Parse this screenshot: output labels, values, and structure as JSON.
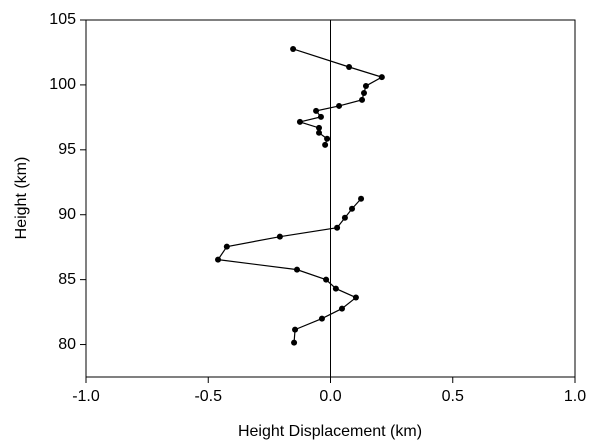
{
  "chart_data": {
    "type": "line",
    "x_label": "Height Displacement (km)",
    "y_label": "Height (km)",
    "x": [
      -0.153,
      0.076,
      0.21,
      0.145,
      0.137,
      0.129,
      0.035,
      -0.059,
      -0.039,
      -0.125,
      -0.047,
      -0.047,
      -0.014,
      -0.022,
      null,
      0.125,
      0.088,
      0.059,
      0.027,
      -0.207,
      -0.424,
      -0.46,
      -0.137,
      -0.018,
      0.022,
      0.104,
      0.047,
      -0.035,
      -0.145,
      -0.149
    ],
    "values": [
      102.77,
      101.38,
      100.6,
      99.92,
      99.38,
      98.85,
      98.38,
      98.0,
      97.54,
      97.15,
      96.69,
      96.31,
      95.85,
      95.38,
      null,
      91.23,
      90.46,
      89.77,
      89.0,
      88.31,
      87.54,
      86.54,
      85.77,
      85.0,
      84.31,
      83.62,
      82.77,
      82.0,
      81.15,
      80.15
    ],
    "color": "#000000",
    "xlim": [
      -1,
      1
    ],
    "xticks": [
      {
        "value": -1,
        "label": "-1.0"
      },
      -0.5,
      {
        "value": 0,
        "label": "0.0"
      },
      0.5,
      {
        "value": 1,
        "label": "1.0"
      }
    ],
    "ylim": [
      77.5,
      105
    ],
    "yticks": [
      80,
      85,
      90,
      95,
      100,
      105
    ],
    "grid": false
  }
}
